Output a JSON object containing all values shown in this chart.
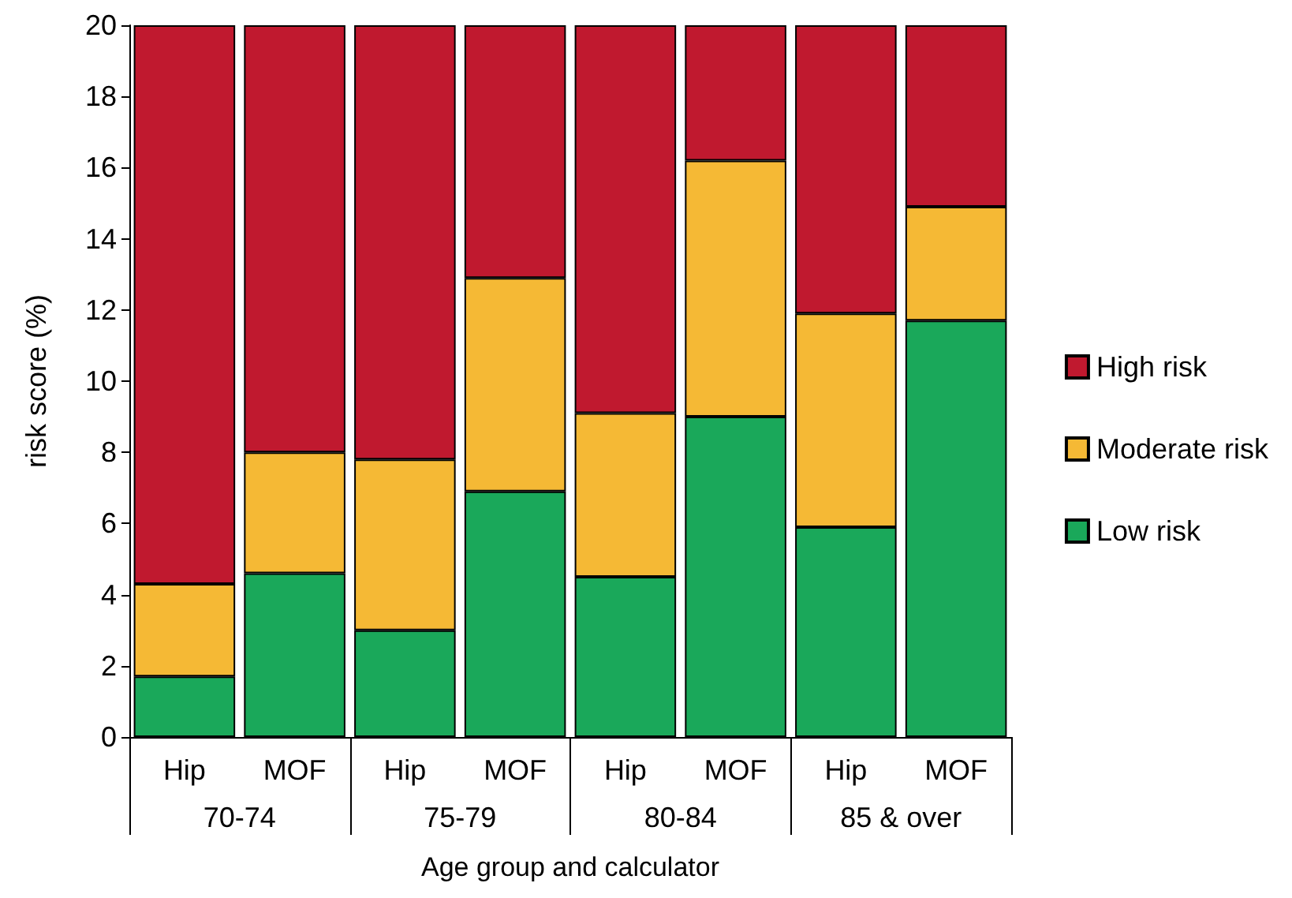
{
  "chart_data": {
    "type": "bar",
    "stacked": true,
    "xlabel": "Age group and calculator",
    "ylabel": "risk score (%)",
    "categories": [
      "Hip",
      "MOF",
      "Hip",
      "MOF",
      "Hip",
      "MOF",
      "Hip",
      "MOF"
    ],
    "annotations": [
      "70-74",
      "75-79",
      "80-84",
      "85 & over"
    ],
    "series": [
      {
        "name": "Low risk",
        "color": "#1aa85a",
        "values": [
          1.7,
          4.6,
          3.0,
          6.9,
          4.5,
          9.0,
          5.9,
          11.7
        ]
      },
      {
        "name": "Moderate risk",
        "color": "#f5b935",
        "values": [
          2.6,
          3.4,
          4.8,
          6.0,
          4.6,
          7.2,
          6.0,
          3.2
        ]
      },
      {
        "name": "High risk",
        "color": "#c0192f",
        "values": [
          15.7,
          12.0,
          12.2,
          7.1,
          10.9,
          3.8,
          8.1,
          5.1
        ]
      }
    ],
    "ylim": [
      0,
      20
    ],
    "yticks": [
      0,
      2,
      4,
      6,
      8,
      10,
      12,
      14,
      16,
      18,
      20
    ],
    "grid": false,
    "legend": "right"
  }
}
